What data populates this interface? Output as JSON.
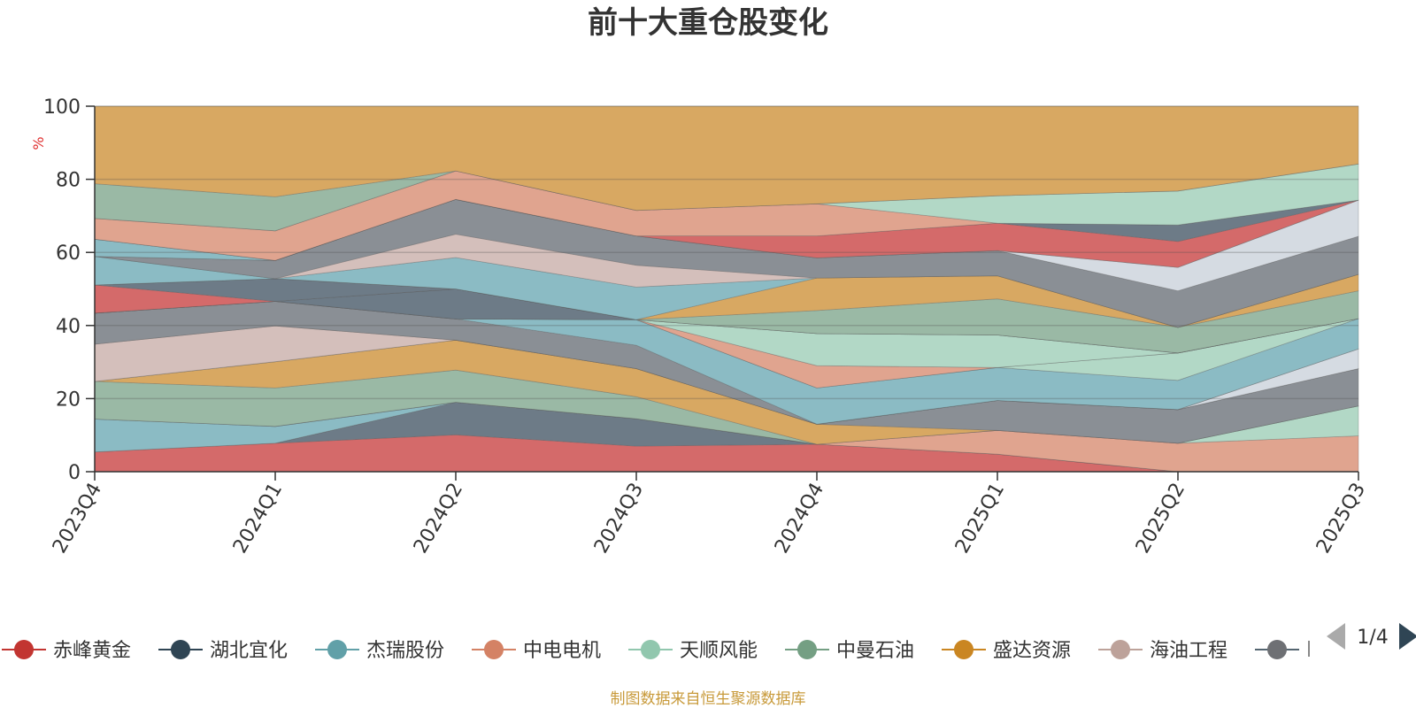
{
  "chart_data": {
    "type": "area",
    "stacked": true,
    "percent_stacked": true,
    "title": "前十大重仓股变化",
    "ylabel": "%",
    "xlabel": "",
    "ylim": [
      0,
      100
    ],
    "yticks": [
      0,
      20,
      40,
      60,
      80,
      100
    ],
    "grid": true,
    "legend_position": "bottom",
    "categories": [
      "2023Q4",
      "2024Q1",
      "2024Q2",
      "2024Q3",
      "2024Q4",
      "2025Q1",
      "2025Q2",
      "2025Q3"
    ],
    "series": [
      {
        "name": "赤峰黄金",
        "values": [
          5.4,
          7.8,
          10.1,
          7.0,
          7.5,
          4.8,
          0,
          0
        ]
      },
      {
        "name": "湖北宜化",
        "values": [
          0,
          0,
          8.9,
          7.5,
          0,
          0,
          0,
          0
        ]
      },
      {
        "name": "杰瑞股份",
        "values": [
          9.0,
          4.6,
          0,
          0,
          0,
          0,
          0,
          0
        ]
      },
      {
        "name": "中电电机",
        "values": [
          0,
          0,
          0,
          0,
          0,
          6.5,
          7.8,
          9.8
        ]
      },
      {
        "name": "天顺风能",
        "values": [
          0,
          0,
          0,
          0,
          0,
          0,
          0,
          8.2
        ]
      },
      {
        "name": "中曼石油",
        "values": [
          10.3,
          10.5,
          8.8,
          6.0,
          0,
          0,
          0,
          0
        ]
      },
      {
        "name": "盛达资源",
        "values": [
          0,
          7.2,
          8.2,
          7.7,
          5.5,
          0,
          0,
          0
        ]
      },
      {
        "name": "海油工程",
        "values": [
          10.2,
          9.8,
          0,
          0,
          0,
          0,
          0,
          0
        ]
      }
    ],
    "legend_page": "1/4"
  },
  "footer": {
    "source_text": "制图数据来自恒生聚源数据库"
  },
  "colors": {
    "chifeng": "#d46a6a",
    "hubei": "#6d7b87",
    "jierui": "#8bbbc4",
    "zhongdian": "#e0a48f",
    "tianshun": "#b2d8c6",
    "zhongman": "#9ab9a5",
    "shengda": "#d8a862",
    "haiyou": "#d4bfbb",
    "gray": "#8a8f95",
    "lightblue": "#d5dbe2"
  }
}
